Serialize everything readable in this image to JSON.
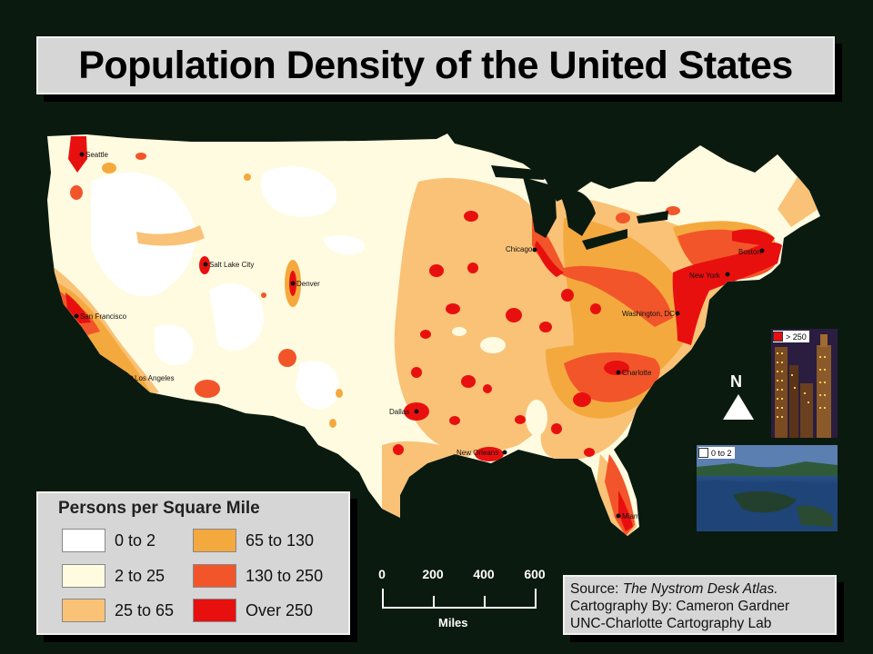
{
  "title": "Population Density of the United States",
  "legend": {
    "title": "Persons per Square Mile",
    "items": [
      {
        "label": "0 to 2",
        "color": "#ffffff"
      },
      {
        "label": "2 to 25",
        "color": "#fffbe0"
      },
      {
        "label": "25 to 65",
        "color": "#f9c277"
      },
      {
        "label": "65 to 130",
        "color": "#f4a93e"
      },
      {
        "label": "130 to 250",
        "color": "#f2552a"
      },
      {
        "label": "Over 250",
        "color": "#e8100f"
      }
    ]
  },
  "cities": [
    {
      "name": "Seattle"
    },
    {
      "name": "Salt Lake City"
    },
    {
      "name": "Denver"
    },
    {
      "name": "San Francisco"
    },
    {
      "name": "Los Angeles"
    },
    {
      "name": "Dallas"
    },
    {
      "name": "Chicago"
    },
    {
      "name": "New Orleans"
    },
    {
      "name": "Washington, DC"
    },
    {
      "name": "New York"
    },
    {
      "name": "Boston"
    },
    {
      "name": "Charlotte"
    },
    {
      "name": "Miami"
    }
  ],
  "scale": {
    "ticks": [
      "0",
      "200",
      "400",
      "600"
    ],
    "unit": "Miles"
  },
  "north_label": "N",
  "insets": {
    "high_label": "> 250",
    "low_label": "0 to 2"
  },
  "source": {
    "line1_prefix": "Source: ",
    "line1_title": "The Nystrom Desk Atlas.",
    "line2": "Cartography By: Cameron Gardner",
    "line3": "UNC-Charlotte Cartography Lab"
  }
}
